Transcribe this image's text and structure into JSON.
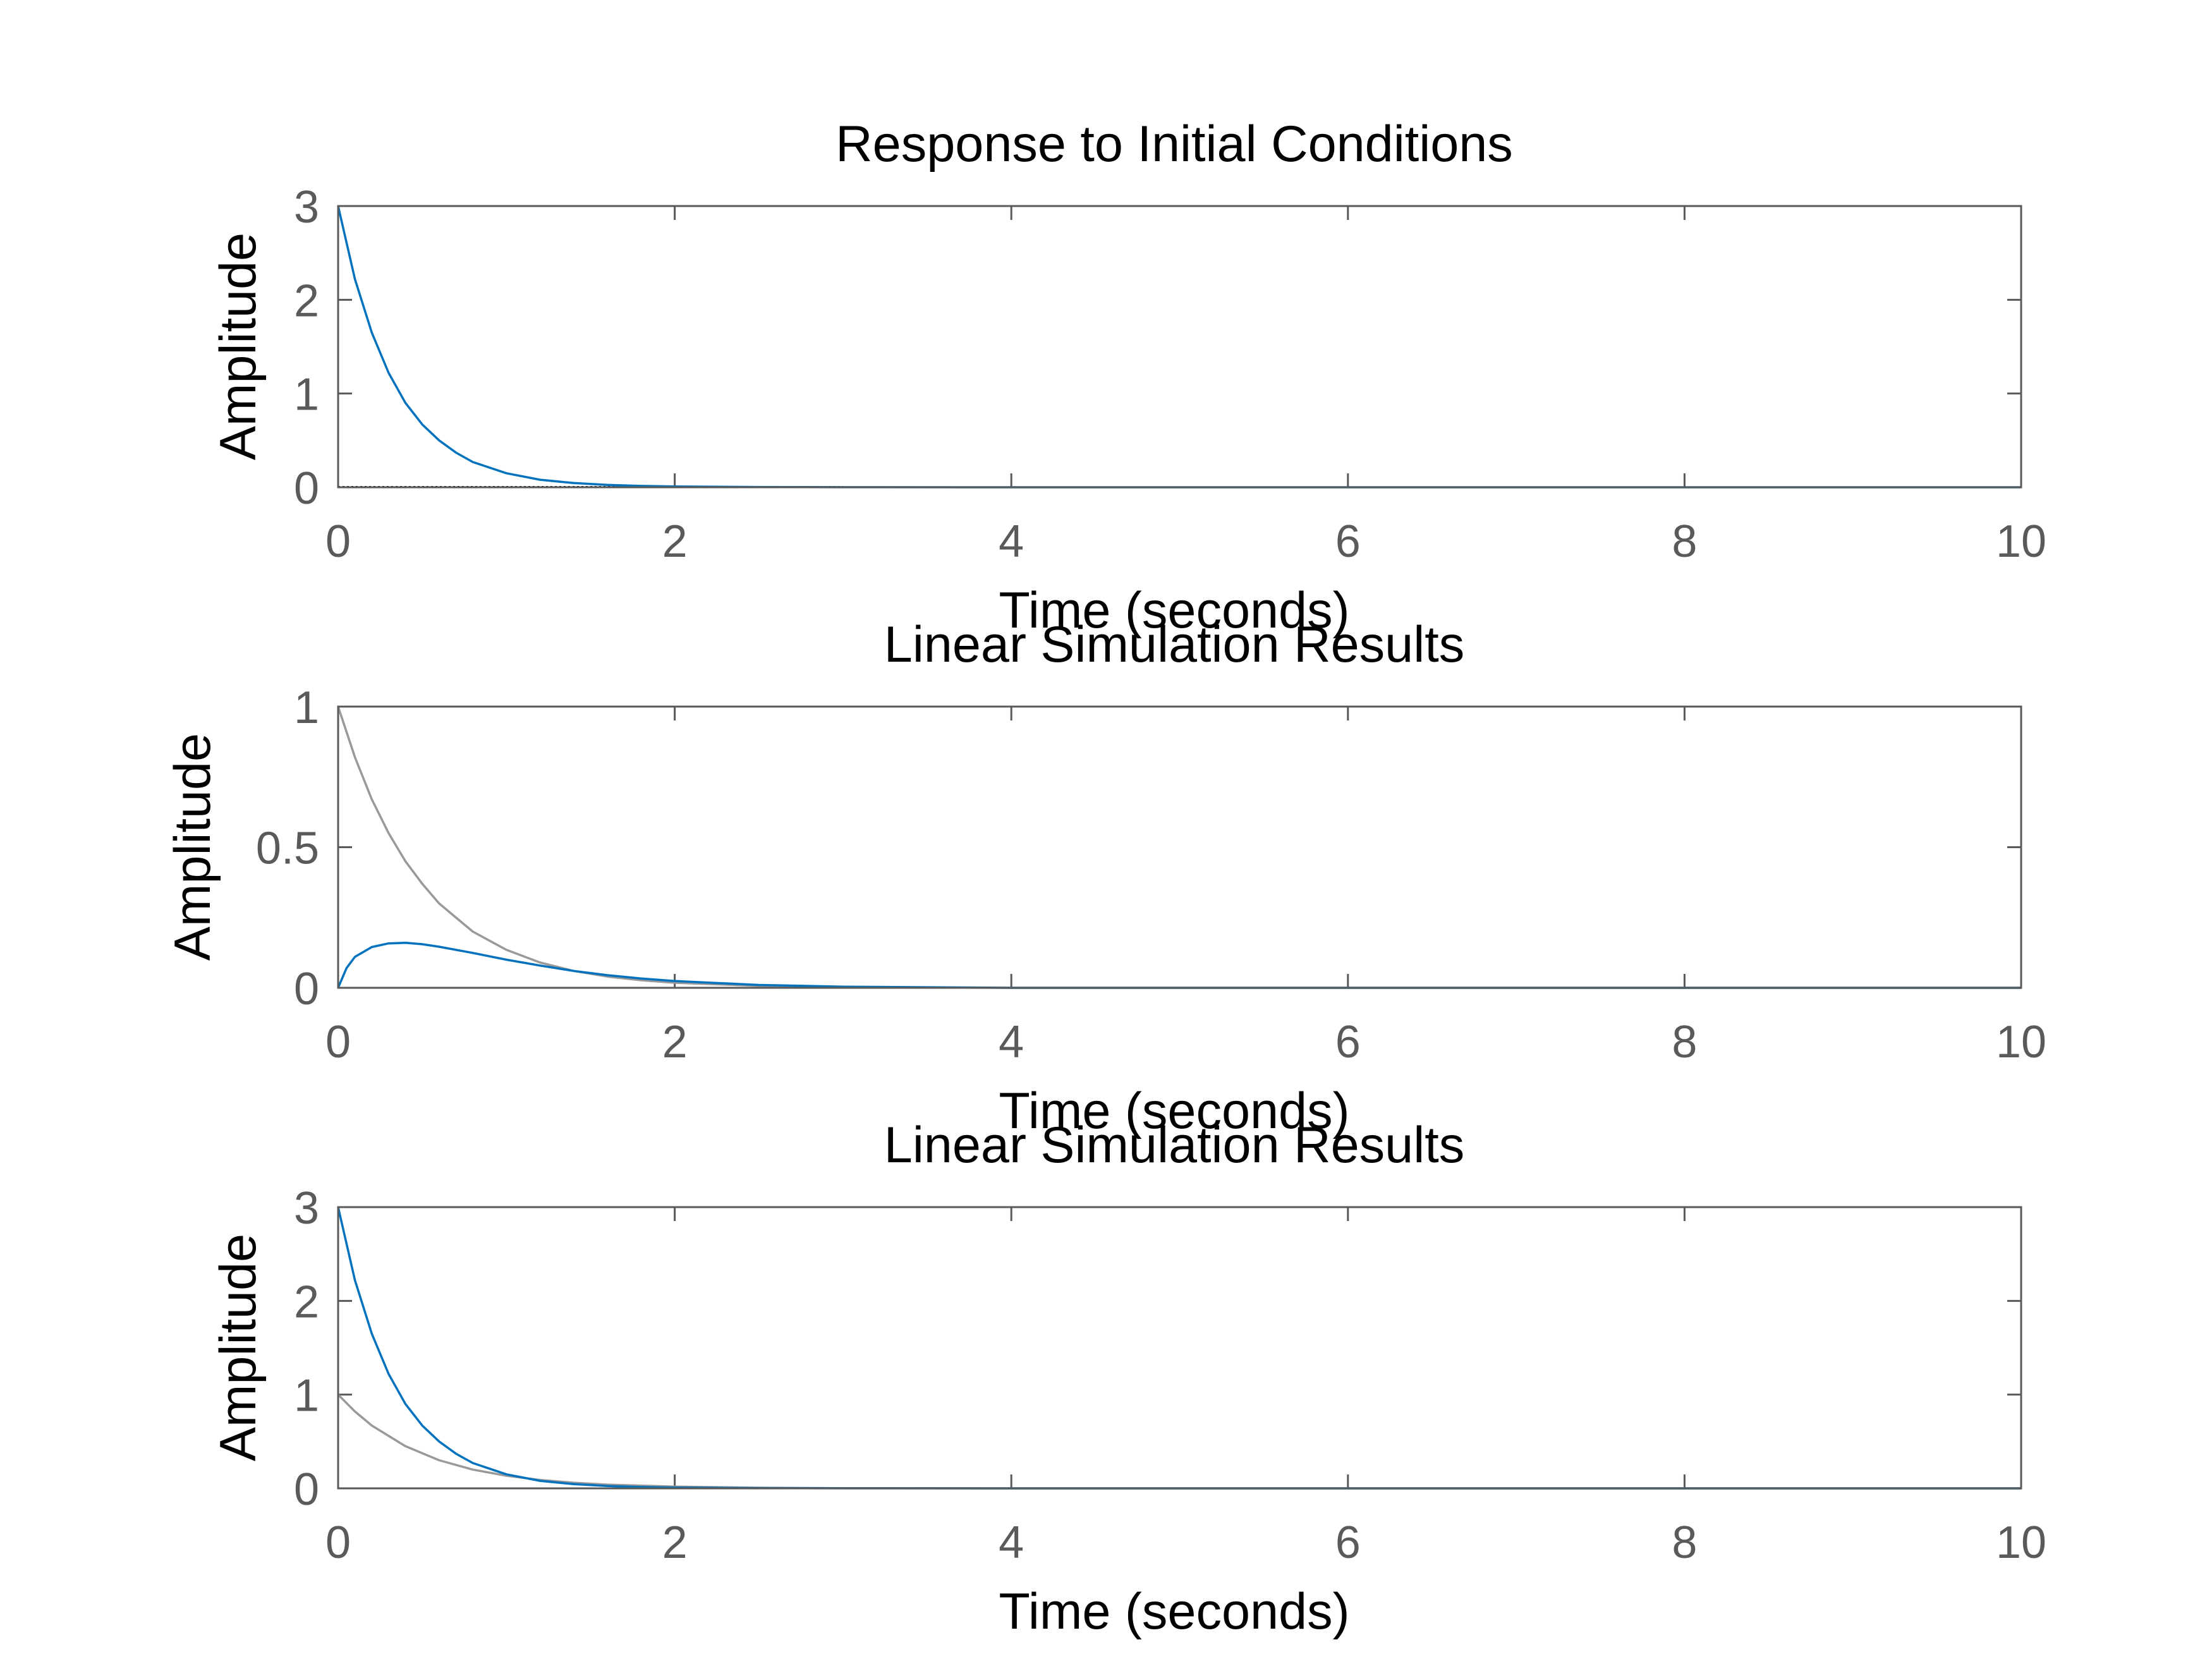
{
  "chart_data": [
    {
      "type": "line",
      "title": "Response to Initial Conditions",
      "xlabel": "Time (seconds)",
      "ylabel": "Amplitude",
      "xlim": [
        0,
        10
      ],
      "ylim": [
        0,
        3
      ],
      "xticks": [
        0,
        2,
        4,
        6,
        8,
        10
      ],
      "yticks": [
        0,
        1,
        2,
        3
      ],
      "grid": false,
      "reference_line_y": 0,
      "series": [
        {
          "color": "#0072bd",
          "x": [
            0,
            0.1,
            0.2,
            0.3,
            0.4,
            0.5,
            0.6,
            0.7,
            0.8,
            1.0,
            1.2,
            1.4,
            1.6,
            1.8,
            2.0,
            2.5,
            3.0,
            4.0,
            6.0,
            10.0
          ],
          "y": [
            3,
            2.22,
            1.65,
            1.22,
            0.9,
            0.67,
            0.5,
            0.37,
            0.27,
            0.15,
            0.08,
            0.045,
            0.025,
            0.014,
            0.008,
            0.003,
            0.001,
            0,
            0,
            0
          ]
        }
      ]
    },
    {
      "type": "line",
      "title": "Linear Simulation Results",
      "xlabel": "Time (seconds)",
      "ylabel": "Amplitude",
      "xlim": [
        0,
        10
      ],
      "ylim": [
        0,
        1
      ],
      "xticks": [
        0,
        2,
        4,
        6,
        8,
        10
      ],
      "yticks": [
        0,
        0.5,
        1
      ],
      "grid": false,
      "series": [
        {
          "color": "#999999",
          "x": [
            0,
            0.1,
            0.2,
            0.3,
            0.4,
            0.5,
            0.6,
            0.8,
            1.0,
            1.2,
            1.4,
            1.6,
            1.8,
            2.0,
            2.5,
            3.0,
            4.0,
            6.0,
            10.0
          ],
          "y": [
            1,
            0.82,
            0.67,
            0.55,
            0.45,
            0.37,
            0.3,
            0.2,
            0.135,
            0.09,
            0.06,
            0.04,
            0.027,
            0.018,
            0.007,
            0.002,
            0,
            0,
            0
          ]
        },
        {
          "color": "#0072bd",
          "x": [
            0,
            0.05,
            0.1,
            0.2,
            0.3,
            0.4,
            0.5,
            0.6,
            0.8,
            1.0,
            1.2,
            1.4,
            1.6,
            1.8,
            2.0,
            2.5,
            3.0,
            4.0,
            6.0,
            10.0
          ],
          "y": [
            0,
            0.07,
            0.11,
            0.145,
            0.158,
            0.16,
            0.155,
            0.146,
            0.124,
            0.1,
            0.079,
            0.06,
            0.045,
            0.033,
            0.024,
            0.01,
            0.004,
            0,
            0,
            0
          ]
        }
      ]
    },
    {
      "type": "line",
      "title": "Linear Simulation Results",
      "xlabel": "Time (seconds)",
      "ylabel": "Amplitude",
      "xlim": [
        0,
        10
      ],
      "ylim": [
        0,
        3
      ],
      "xticks": [
        0,
        2,
        4,
        6,
        8,
        10
      ],
      "yticks": [
        0,
        1,
        2,
        3
      ],
      "grid": false,
      "series": [
        {
          "color": "#999999",
          "x": [
            0,
            0.1,
            0.2,
            0.4,
            0.6,
            0.8,
            1.0,
            1.2,
            1.4,
            1.6,
            2.0,
            2.5,
            3.0,
            4.0,
            10.0
          ],
          "y": [
            1,
            0.82,
            0.67,
            0.45,
            0.3,
            0.2,
            0.135,
            0.09,
            0.06,
            0.04,
            0.018,
            0.007,
            0.002,
            0,
            0
          ]
        },
        {
          "color": "#0072bd",
          "x": [
            0,
            0.1,
            0.2,
            0.3,
            0.4,
            0.5,
            0.6,
            0.7,
            0.8,
            1.0,
            1.2,
            1.4,
            1.6,
            1.8,
            2.0,
            2.5,
            3.0,
            4.0,
            6.0,
            10.0
          ],
          "y": [
            3,
            2.22,
            1.65,
            1.22,
            0.9,
            0.67,
            0.5,
            0.37,
            0.27,
            0.15,
            0.08,
            0.045,
            0.025,
            0.014,
            0.008,
            0.003,
            0.001,
            0,
            0,
            0
          ]
        }
      ]
    }
  ]
}
